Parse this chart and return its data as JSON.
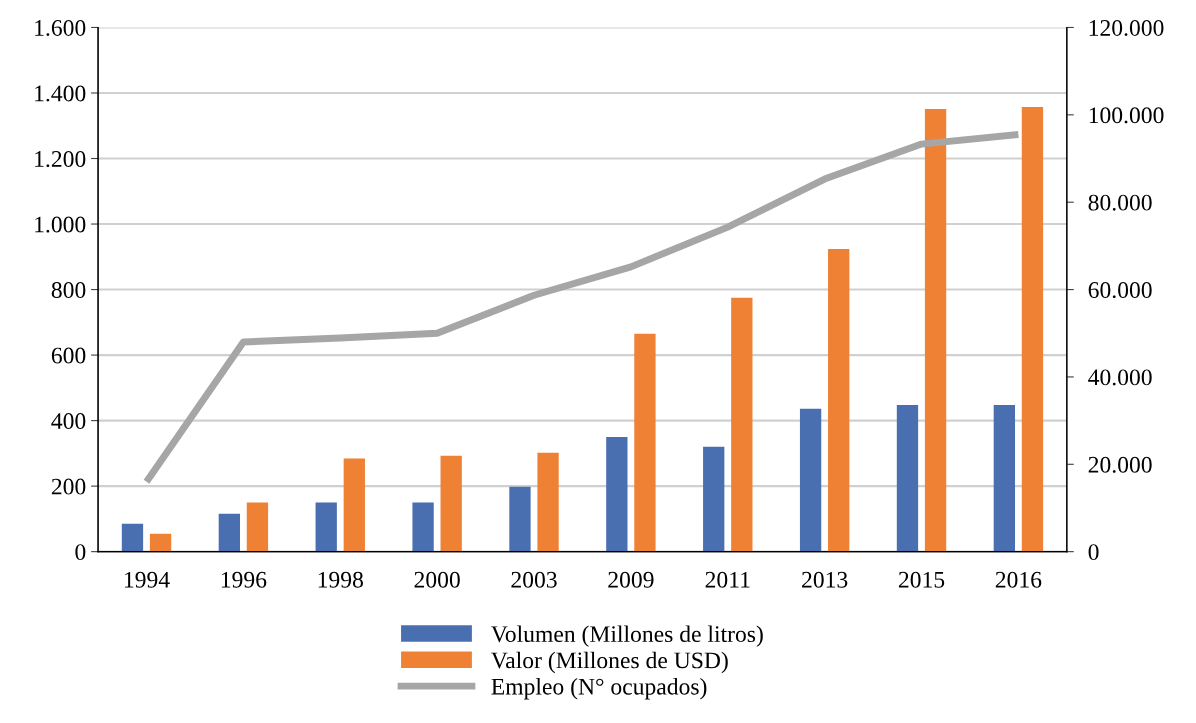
{
  "chart_data": {
    "type": "bar",
    "categories": [
      "1994",
      "1996",
      "1998",
      "2000",
      "2003",
      "2009",
      "2011",
      "2013",
      "2015",
      "2016"
    ],
    "series": [
      {
        "name": "Volumen (Millones de litros)",
        "color": "#4a6fb0",
        "values": [
          85,
          116,
          150,
          150,
          198,
          350,
          320,
          436,
          448,
          448
        ]
      },
      {
        "name": "Valor (Millones de USD)",
        "color": "#ee8133",
        "values": [
          55,
          150,
          284,
          293,
          302,
          665,
          775,
          924,
          1351,
          1357
        ]
      },
      {
        "name": "Empleo (N° ocupados)",
        "type": "line",
        "axis": "y2",
        "color": "#a6a6a6",
        "values": [
          16000,
          48000,
          48900,
          50000,
          58700,
          65200,
          74300,
          85300,
          93300,
          95500
        ]
      }
    ],
    "ylim": [
      0,
      1600
    ],
    "yticks": [
      0,
      {
        "value": 200,
        "label": "200"
      },
      {
        "value": 400,
        "label": "400"
      },
      {
        "value": 600,
        "label": "600"
      },
      {
        "value": 800,
        "label": "800"
      },
      {
        "value": 1000,
        "label": "1.000"
      },
      {
        "value": 1200,
        "label": "1.200"
      },
      {
        "value": 1400,
        "label": "1.400"
      },
      {
        "value": 1600,
        "label": "1.600"
      }
    ],
    "y2lim": [
      0,
      120000
    ],
    "y2ticks": [
      0,
      {
        "value": 20000,
        "label": "20.000"
      },
      {
        "value": 40000,
        "label": "40.000"
      },
      {
        "value": 60000,
        "label": "60.000"
      },
      {
        "value": 80000,
        "label": "80.000"
      },
      {
        "value": 100000,
        "label": "100.000"
      },
      {
        "value": 120000,
        "label": "120.000"
      }
    ],
    "grid": "y",
    "legend": "bottom",
    "marker": "none",
    "line_style": "solid"
  }
}
